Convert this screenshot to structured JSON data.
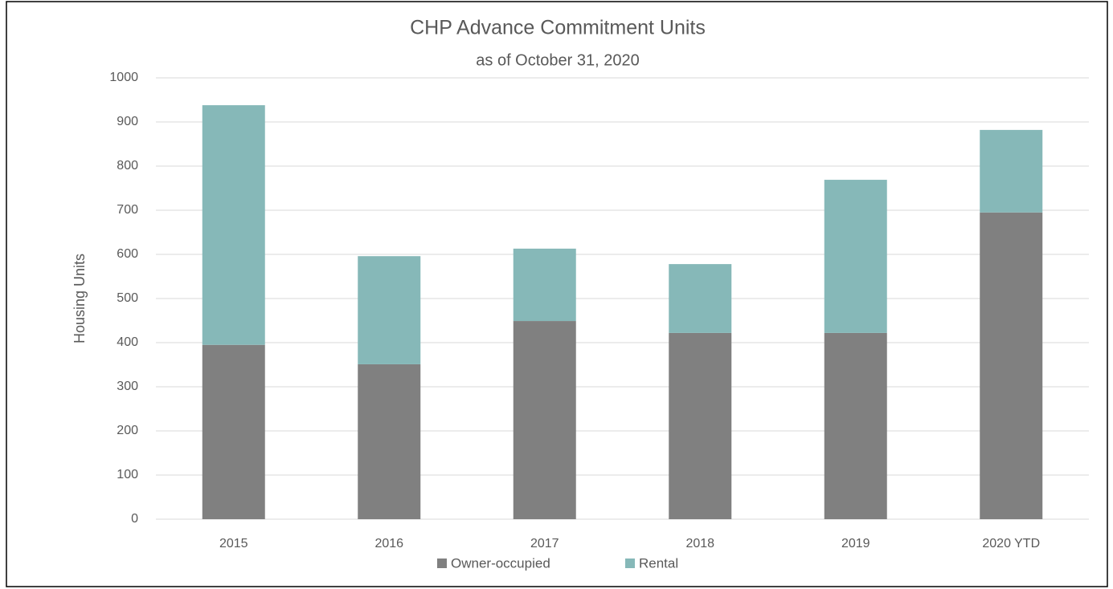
{
  "chart_data": {
    "type": "bar",
    "stacked": true,
    "title": "CHP Advance Commitment Units",
    "subtitle": "as of October 31, 2020",
    "y_label": "Housing Units",
    "categories": [
      "2015",
      "2016",
      "2017",
      "2018",
      "2019",
      "2020 YTD"
    ],
    "series": [
      {
        "name": "Owner-occupied",
        "color": "#808080",
        "values": [
          395,
          351,
          449,
          422,
          422,
          695
        ]
      },
      {
        "name": "Rental",
        "color": "#86b8b8",
        "values": [
          543,
          245,
          164,
          156,
          347,
          187
        ]
      }
    ],
    "ylim": [
      0,
      1000
    ],
    "yticks": [
      0,
      100,
      200,
      300,
      400,
      500,
      600,
      700,
      800,
      900,
      1000
    ],
    "grid": true,
    "legend": "bottom"
  }
}
